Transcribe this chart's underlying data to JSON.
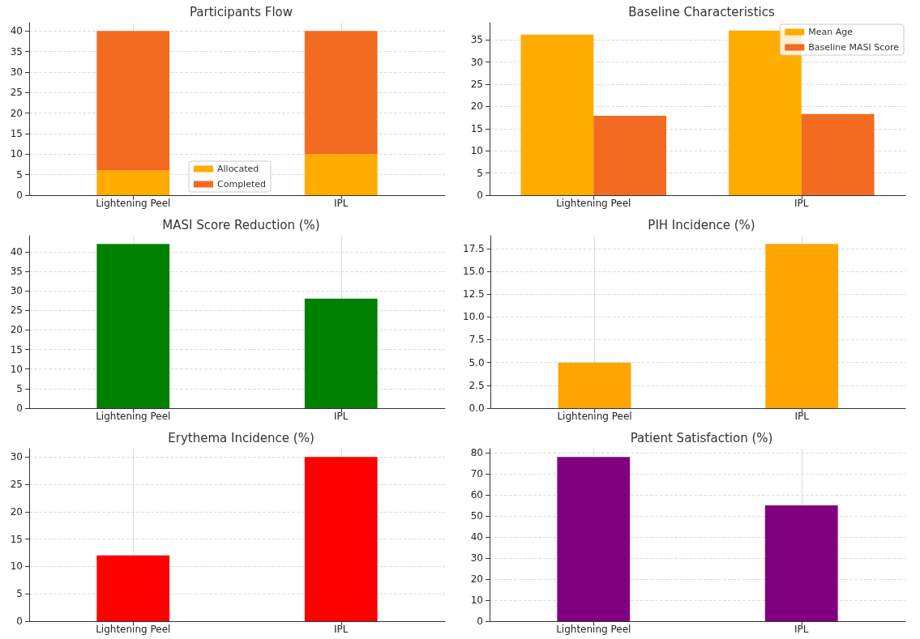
{
  "chart_data": [
    {
      "type": "bar",
      "title": "Participants Flow",
      "categories": [
        "Lightening Peel",
        "IPL"
      ],
      "stacked": true,
      "series": [
        {
          "name": "Allocated",
          "color": "#ffab00",
          "values": [
            6,
            10
          ]
        },
        {
          "name": "Completed",
          "color": "#f26b21",
          "values": [
            34,
            30
          ]
        }
      ],
      "ylim": [
        0,
        42
      ],
      "yticks": [
        0,
        5,
        10,
        15,
        20,
        25,
        30,
        35,
        40
      ],
      "grid": true,
      "legend": "bottom"
    },
    {
      "type": "bar",
      "title": "Baseline Characteristics",
      "categories": [
        "Lightening Peel",
        "IPL"
      ],
      "series": [
        {
          "name": "Mean Age",
          "color": "#ffab00",
          "values": [
            36.2,
            37.1
          ]
        },
        {
          "name": "Baseline MASI Score",
          "color": "#f26b21",
          "values": [
            17.9,
            18.3
          ]
        }
      ],
      "ylim": [
        0,
        38.9
      ],
      "yticks": [
        0,
        5,
        10,
        15,
        20,
        25,
        30,
        35
      ],
      "grid": "y",
      "legend": "top right"
    },
    {
      "type": "bar",
      "title": "MASI Score Reduction (%)",
      "categories": [
        "Lightening Peel",
        "IPL"
      ],
      "series": [
        {
          "color": "#008000",
          "values": [
            42,
            28
          ]
        }
      ],
      "ylim": [
        0,
        44.1
      ],
      "yticks": [
        0,
        5,
        10,
        15,
        20,
        25,
        30,
        35,
        40
      ],
      "grid": true
    },
    {
      "type": "bar",
      "title": "PIH Incidence (%)",
      "categories": [
        "Lightening Peel",
        "IPL"
      ],
      "series": [
        {
          "color": "#ffa500",
          "values": [
            5,
            18
          ]
        }
      ],
      "ylim": [
        0,
        18.9
      ],
      "yticks": [
        {
          "value": 0,
          "label": "0.0"
        },
        2.5,
        {
          "value": 5,
          "label": "5.0"
        },
        7.5,
        {
          "value": 10,
          "label": "10.0"
        },
        12.5,
        {
          "value": 15,
          "label": "15.0"
        },
        17.5
      ],
      "grid": true
    },
    {
      "type": "bar",
      "title": "Erythema Incidence (%)",
      "categories": [
        "Lightening Peel",
        "IPL"
      ],
      "series": [
        {
          "color": "#ff0000",
          "values": [
            12,
            30
          ]
        }
      ],
      "ylim": [
        0,
        31.5
      ],
      "yticks": [
        0,
        5,
        10,
        15,
        20,
        25,
        30
      ],
      "grid": true
    },
    {
      "type": "bar",
      "title": "Patient Satisfaction (%)",
      "categories": [
        "Lightening Peel",
        "IPL"
      ],
      "series": [
        {
          "color": "#800080",
          "values": [
            78,
            55
          ]
        }
      ],
      "ylim": [
        0,
        81.9
      ],
      "yticks": [
        0,
        10,
        20,
        30,
        40,
        50,
        60,
        70,
        80
      ],
      "grid": true
    }
  ]
}
